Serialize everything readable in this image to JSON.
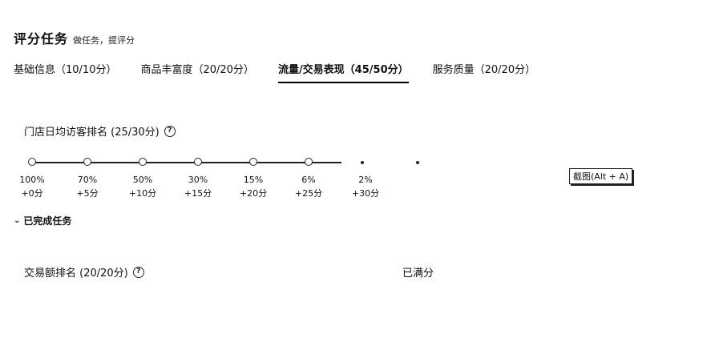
{
  "header": {
    "title": "评分任务",
    "subtitle": "做任务，提评分"
  },
  "tabs": [
    {
      "label": "基础信息（10/10分）"
    },
    {
      "label": "商品丰富度（20/20分）"
    },
    {
      "label": "流量/交易表现（45/50分）"
    },
    {
      "label": "服务质量（20/20分）"
    }
  ],
  "visitor_rank": {
    "label": "门店日均访客排名 (25/30分)",
    "steps": [
      {
        "pct": "100%",
        "points": "+0分"
      },
      {
        "pct": "70%",
        "points": "+5分"
      },
      {
        "pct": "50%",
        "points": "+10分"
      },
      {
        "pct": "30%",
        "points": "+15分"
      },
      {
        "pct": "15%",
        "points": "+20分"
      },
      {
        "pct": "6%",
        "points": "+25分"
      },
      {
        "pct": "2%",
        "points": "+30分"
      }
    ]
  },
  "tooltip": "截图(Alt + A)",
  "completed": {
    "label": "已完成任务"
  },
  "trade_rank": {
    "label": "交易额排名 (20/20分)",
    "status": "已满分"
  },
  "icons": {
    "help": "question-circle-icon",
    "chevron": "chevron-down-icon"
  }
}
